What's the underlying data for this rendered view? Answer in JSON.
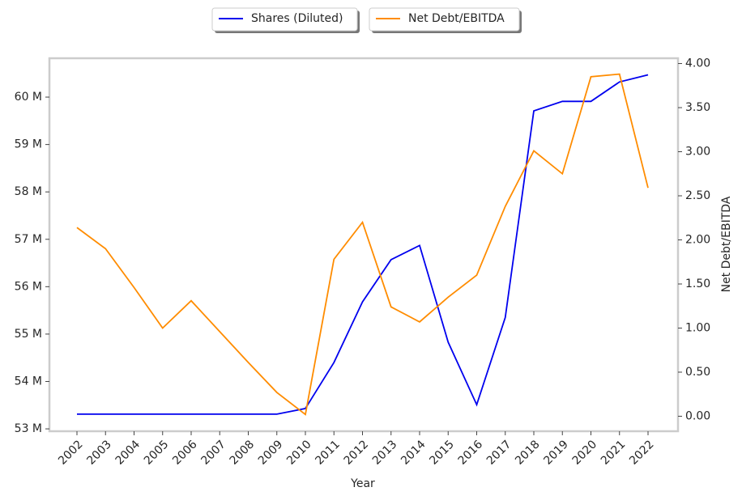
{
  "chart_data": {
    "type": "line",
    "x_label": "Year",
    "y2_label": "Net Debt/EBITDA",
    "categories": [
      "2002",
      "2003",
      "2004",
      "2005",
      "2006",
      "2007",
      "2008",
      "2009",
      "2010",
      "2011",
      "2012",
      "2013",
      "2014",
      "2015",
      "2016",
      "2017",
      "2018",
      "2019",
      "2020",
      "2021",
      "2022"
    ],
    "series": [
      {
        "name": "Shares (Diluted)",
        "color": "#0000ee",
        "axis": "y",
        "values": [
          53310000,
          53310000,
          53310000,
          53310000,
          53310000,
          53310000,
          53310000,
          53310000,
          53430000,
          54400000,
          55680000,
          56570000,
          56870000,
          54830000,
          53510000,
          55350000,
          59710000,
          59910000,
          59910000,
          60320000,
          60470000
        ]
      },
      {
        "name": "Net Debt/EBITDA",
        "color": "#ff8c00",
        "axis": "y2",
        "values": [
          2.14,
          1.9,
          1.46,
          1.0,
          1.31,
          0.96,
          0.61,
          0.27,
          0.02,
          1.78,
          2.2,
          1.24,
          1.07,
          1.35,
          1.6,
          2.38,
          3.01,
          2.75,
          3.85,
          3.88,
          2.59
        ]
      }
    ],
    "ylim": [
      52950000,
      60820000
    ],
    "yticks": [
      {
        "value": 53000000,
        "label": "53 M"
      },
      {
        "value": 54000000,
        "label": "54 M"
      },
      {
        "value": 55000000,
        "label": "55 M"
      },
      {
        "value": 56000000,
        "label": "56 M"
      },
      {
        "value": 57000000,
        "label": "57 M"
      },
      {
        "value": 58000000,
        "label": "58 M"
      },
      {
        "value": 59000000,
        "label": "59 M"
      },
      {
        "value": 60000000,
        "label": "60 M"
      }
    ],
    "y2lim": [
      -0.17,
      4.06
    ],
    "y2ticks": [
      {
        "value": 0,
        "label": "0.00"
      },
      {
        "value": 0.5,
        "label": "0.50"
      },
      {
        "value": 1,
        "label": "1.00"
      },
      {
        "value": 1.5,
        "label": "1.50"
      },
      {
        "value": 2,
        "label": "2.00"
      },
      {
        "value": 2.5,
        "label": "2.50"
      },
      {
        "value": 3,
        "label": "3.00"
      },
      {
        "value": 3.5,
        "label": "3.50"
      },
      {
        "value": 4,
        "label": "4.00"
      }
    ]
  }
}
